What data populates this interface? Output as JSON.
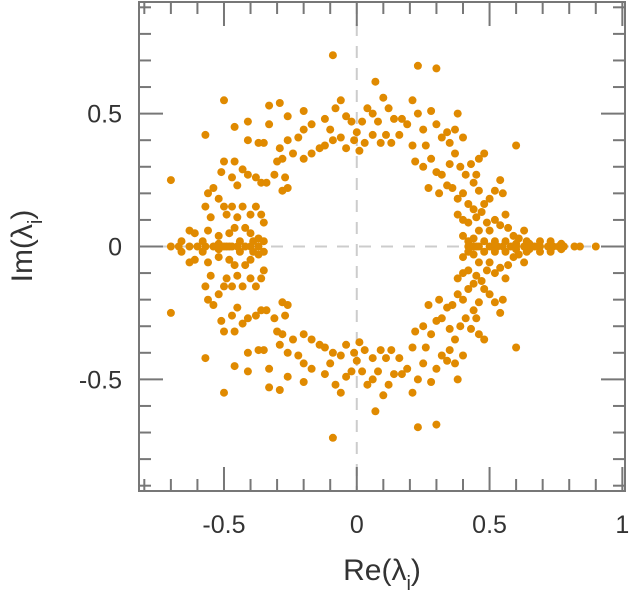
{
  "chart_data": {
    "type": "scatter",
    "title": "",
    "xlabel": "Re(λi)",
    "ylabel": "Im(λi)",
    "xlabel_parts": {
      "prefix": "Re(",
      "symbol": "λ",
      "subscript": "i",
      "suffix": ")"
    },
    "ylabel_parts": {
      "prefix": "Im(",
      "symbol": "λ",
      "subscript": "i",
      "suffix": ")"
    },
    "xlim": [
      -0.82,
      1.01
    ],
    "ylim": [
      -0.92,
      0.92
    ],
    "xticks": [
      -0.5,
      0,
      0.5,
      1
    ],
    "xtick_labels": [
      "-0.5",
      "0",
      "0.5",
      "1"
    ],
    "yticks": [
      -0.5,
      0,
      0.5
    ],
    "ytick_labels": [
      "-0.5",
      "0",
      "0.5"
    ],
    "minor_tick_step": 0.1,
    "grid": false,
    "reference_lines": {
      "x": 0,
      "y": 0,
      "style": "dashed"
    },
    "legend": "none",
    "marker_color": "#e08a00",
    "symmetric_about_real_axis": true,
    "series": [
      {
        "name": "eigenvalues",
        "real_axis_points": [
          -0.7,
          -0.67,
          -0.63,
          -0.6,
          -0.57,
          -0.54,
          -0.5,
          -0.49,
          -0.48,
          -0.47,
          -0.45,
          -0.42,
          -0.4,
          -0.37,
          0.42,
          0.43,
          0.44,
          0.45,
          0.46,
          0.5,
          0.51,
          0.53,
          0.55,
          0.58,
          0.6,
          0.63,
          0.67,
          0.69,
          0.72,
          0.74,
          0.76,
          0.77,
          0.78,
          0.82,
          0.84,
          0.9
        ],
        "upper_points": [
          [
            -0.5,
            0.55
          ],
          [
            -0.7,
            0.25
          ],
          [
            -0.57,
            0.42
          ],
          [
            -0.46,
            0.45
          ],
          [
            -0.41,
            0.47
          ],
          [
            -0.33,
            0.53
          ],
          [
            -0.29,
            0.54
          ],
          [
            -0.33,
            0.46
          ],
          [
            -0.26,
            0.49
          ],
          [
            -0.2,
            0.51
          ],
          [
            -0.17,
            0.46
          ],
          [
            -0.2,
            0.44
          ],
          [
            -0.5,
            0.32
          ],
          [
            -0.46,
            0.32
          ],
          [
            -0.41,
            0.4
          ],
          [
            -0.37,
            0.39
          ],
          [
            -0.35,
            0.39
          ],
          [
            -0.29,
            0.37
          ],
          [
            -0.26,
            0.4
          ],
          [
            -0.22,
            0.41
          ],
          [
            -0.3,
            0.32
          ],
          [
            -0.28,
            0.33
          ],
          [
            -0.24,
            0.35
          ],
          [
            -0.2,
            0.33
          ],
          [
            -0.17,
            0.35
          ],
          [
            -0.14,
            0.37
          ],
          [
            -0.51,
            0.28
          ],
          [
            -0.56,
            0.2
          ],
          [
            -0.54,
            0.22
          ],
          [
            -0.52,
            0.18
          ],
          [
            -0.47,
            0.26
          ],
          [
            -0.45,
            0.23
          ],
          [
            -0.43,
            0.29
          ],
          [
            -0.41,
            0.27
          ],
          [
            -0.38,
            0.26
          ],
          [
            -0.36,
            0.24
          ],
          [
            -0.34,
            0.24
          ],
          [
            -0.31,
            0.27
          ],
          [
            -0.26,
            0.22
          ],
          [
            -0.28,
            0.21
          ],
          [
            -0.27,
            0.26
          ],
          [
            -0.57,
            0.15
          ],
          [
            -0.55,
            0.11
          ],
          [
            -0.5,
            0.15
          ],
          [
            -0.49,
            0.12
          ],
          [
            -0.47,
            0.15
          ],
          [
            -0.45,
            0.11
          ],
          [
            -0.43,
            0.15
          ],
          [
            -0.4,
            0.12
          ],
          [
            -0.38,
            0.15
          ],
          [
            -0.36,
            0.12
          ],
          [
            -0.35,
            0.09
          ],
          [
            -0.63,
            0.06
          ],
          [
            -0.61,
            0.05
          ],
          [
            -0.56,
            0.06
          ],
          [
            -0.52,
            0.04
          ],
          [
            -0.48,
            0.05
          ],
          [
            -0.46,
            0.07
          ],
          [
            -0.42,
            0.07
          ],
          [
            -0.4,
            0.05
          ],
          [
            -0.37,
            0.03
          ],
          [
            -0.35,
            0.02
          ],
          [
            -0.66,
            0.02
          ],
          [
            -0.58,
            0.02
          ],
          [
            -0.52,
            0.01
          ],
          [
            -0.44,
            0.02
          ],
          [
            -0.39,
            0.02
          ],
          [
            -0.12,
            0.48
          ],
          [
            -0.1,
            0.44
          ],
          [
            -0.08,
            0.52
          ],
          [
            -0.06,
            0.55
          ],
          [
            -0.04,
            0.49
          ],
          [
            -0.02,
            0.47
          ],
          [
            -0.01,
            0.4
          ],
          [
            0.0,
            0.43
          ],
          [
            0.02,
            0.47
          ],
          [
            0.04,
            0.52
          ],
          [
            0.06,
            0.5
          ],
          [
            0.08,
            0.47
          ],
          [
            0.1,
            0.56
          ],
          [
            0.12,
            0.52
          ],
          [
            0.14,
            0.48
          ],
          [
            0.16,
            0.42
          ],
          [
            -0.09,
            0.72
          ],
          [
            -0.12,
            0.38
          ],
          [
            -0.09,
            0.4
          ],
          [
            -0.06,
            0.41
          ],
          [
            -0.04,
            0.37
          ],
          [
            0.01,
            0.36
          ],
          [
            0.03,
            0.39
          ],
          [
            0.06,
            0.42
          ],
          [
            0.09,
            0.39
          ],
          [
            0.11,
            0.42
          ],
          [
            0.13,
            0.39
          ],
          [
            0.07,
            0.62
          ],
          [
            0.21,
            0.55
          ],
          [
            0.23,
            0.68
          ],
          [
            0.3,
            0.67
          ],
          [
            0.17,
            0.48
          ],
          [
            0.19,
            0.46
          ],
          [
            0.21,
            0.38
          ],
          [
            0.23,
            0.5
          ],
          [
            0.25,
            0.44
          ],
          [
            0.26,
            0.38
          ],
          [
            0.28,
            0.51
          ],
          [
            0.3,
            0.46
          ],
          [
            0.32,
            0.41
          ],
          [
            0.34,
            0.43
          ],
          [
            0.35,
            0.39
          ],
          [
            0.37,
            0.44
          ],
          [
            0.4,
            0.41
          ],
          [
            0.38,
            0.5
          ],
          [
            0.22,
            0.32
          ],
          [
            0.25,
            0.3
          ],
          [
            0.28,
            0.33
          ],
          [
            0.3,
            0.28
          ],
          [
            0.32,
            0.27
          ],
          [
            0.35,
            0.31
          ],
          [
            0.37,
            0.35
          ],
          [
            0.39,
            0.3
          ],
          [
            0.41,
            0.27
          ],
          [
            0.43,
            0.31
          ],
          [
            0.45,
            0.27
          ],
          [
            0.46,
            0.33
          ],
          [
            0.48,
            0.35
          ],
          [
            0.27,
            0.22
          ],
          [
            0.31,
            0.2
          ],
          [
            0.34,
            0.23
          ],
          [
            0.36,
            0.22
          ],
          [
            0.38,
            0.18
          ],
          [
            0.4,
            0.2
          ],
          [
            0.42,
            0.16
          ],
          [
            0.44,
            0.24
          ],
          [
            0.46,
            0.21
          ],
          [
            0.48,
            0.16
          ],
          [
            0.5,
            0.18
          ],
          [
            0.52,
            0.21
          ],
          [
            0.54,
            0.25
          ],
          [
            0.55,
            0.2
          ],
          [
            0.6,
            0.38
          ],
          [
            0.38,
            0.12
          ],
          [
            0.4,
            0.1
          ],
          [
            0.42,
            0.09
          ],
          [
            0.44,
            0.14
          ],
          [
            0.45,
            0.11
          ],
          [
            0.46,
            0.06
          ],
          [
            0.47,
            0.13
          ],
          [
            0.49,
            0.09
          ],
          [
            0.5,
            0.06
          ],
          [
            0.52,
            0.1
          ],
          [
            0.54,
            0.08
          ],
          [
            0.56,
            0.12
          ],
          [
            0.57,
            0.07
          ],
          [
            0.59,
            0.04
          ],
          [
            0.61,
            0.03
          ],
          [
            0.63,
            0.06
          ],
          [
            0.64,
            0.02
          ],
          [
            0.4,
            0.04
          ],
          [
            0.42,
            0.02
          ],
          [
            0.44,
            0.03
          ],
          [
            0.48,
            0.02
          ],
          [
            0.52,
            0.02
          ],
          [
            0.56,
            0.02
          ],
          [
            0.6,
            0.01
          ],
          [
            0.65,
            0.01
          ],
          [
            0.69,
            0.02
          ],
          [
            0.73,
            0.02
          ],
          [
            0.77,
            0.01
          ]
        ]
      }
    ]
  }
}
